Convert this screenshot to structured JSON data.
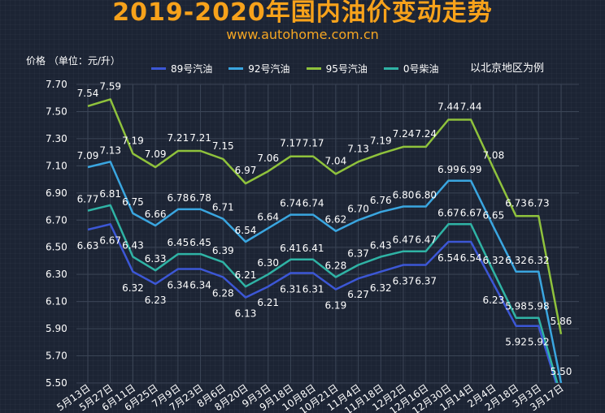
{
  "header": {
    "title": "2019-2020年国内油价变动走势",
    "source": "www.autohome.com.cn",
    "unit": "价格 （单位：元/升）",
    "note": "以北京地区为例"
  },
  "colors": {
    "s89": "#3c57d6",
    "s92": "#3aa6e0",
    "s95": "#8fc23c",
    "s0": "#2fb3a5",
    "title": "#f7a21b",
    "grid": "#3b4556"
  },
  "chart_data": {
    "type": "line",
    "title": "2019-2020年国内油价变动走势",
    "ylabel": "价格 （单位：元/升）",
    "ylim": [
      5.5,
      7.7
    ],
    "yticks": [
      "7.70",
      "7.50",
      "7.30",
      "7.10",
      "6.90",
      "6.70",
      "6.50",
      "6.30",
      "6.10",
      "5.90",
      "5.70",
      "5.50"
    ],
    "grid": true,
    "legend_position": "top",
    "x": [
      "5月13日",
      "5月27日",
      "6月11日",
      "6月25日",
      "7月9日",
      "7月23日",
      "8月6日",
      "8月20日",
      "9月3日",
      "9月18日",
      "10月8日",
      "10月21日",
      "11月4日",
      "11月18日",
      "12月2日",
      "12月16日",
      "12月30日",
      "1月14日",
      "2月4日",
      "2月18日",
      "3月3日",
      "3月17日"
    ],
    "series": [
      {
        "name": "89号汽油",
        "color": "#3c57d6",
        "values": [
          6.63,
          6.67,
          6.32,
          6.23,
          6.34,
          6.34,
          6.28,
          6.13,
          6.21,
          6.31,
          6.31,
          6.19,
          6.27,
          6.32,
          6.37,
          6.37,
          6.54,
          6.54,
          6.23,
          5.92,
          5.92,
          5.38
        ],
        "labels": [
          "6.63",
          "6.67",
          "6.32",
          "6.23",
          "6.34",
          "6.34",
          "6.28",
          "6.13",
          "6.21",
          "6.31",
          "6.31",
          "6.19",
          "6.27",
          "6.32",
          "6.37",
          "6.37",
          "6.54",
          "6.54",
          "6.23",
          "5.92",
          "5.92",
          ""
        ]
      },
      {
        "name": "92号汽油",
        "color": "#3aa6e0",
        "values": [
          7.09,
          7.13,
          6.75,
          6.66,
          6.78,
          6.78,
          6.71,
          6.54,
          6.64,
          6.74,
          6.74,
          6.62,
          6.7,
          6.76,
          6.8,
          6.8,
          6.99,
          6.99,
          6.65,
          6.32,
          6.32,
          5.5
        ],
        "labels": [
          "7.09",
          "7.13",
          "6.75",
          "6.66",
          "6.78",
          "6.78",
          "6.71",
          "6.54",
          "6.64",
          "6.74",
          "6.74",
          "6.62",
          "6.70",
          "6.76",
          "6.80",
          "6.80",
          "6.99",
          "6.99",
          "6.65",
          "6.32",
          "6.32",
          "5.50"
        ]
      },
      {
        "name": "95号汽油",
        "color": "#8fc23c",
        "values": [
          7.54,
          7.59,
          7.19,
          7.09,
          7.21,
          7.21,
          7.15,
          6.97,
          7.06,
          7.17,
          7.17,
          7.04,
          7.13,
          7.19,
          7.24,
          7.24,
          7.44,
          7.44,
          7.08,
          6.73,
          6.73,
          5.86
        ],
        "labels": [
          "7.54",
          "7.59",
          "7.19",
          "7.09",
          "7.21",
          "7.21",
          "7.15",
          "6.97",
          "7.06",
          "7.17",
          "7.17",
          "7.04",
          "7.13",
          "7.19",
          "7.24",
          "7.24",
          "7.44",
          "7.44",
          "7.08",
          "6.73",
          "6.73",
          "5.86"
        ]
      },
      {
        "name": "0号柴油",
        "color": "#2fb3a5",
        "values": [
          6.77,
          6.81,
          6.43,
          6.33,
          6.45,
          6.45,
          6.39,
          6.21,
          6.3,
          6.41,
          6.41,
          6.28,
          6.37,
          6.43,
          6.47,
          6.47,
          6.67,
          6.67,
          6.32,
          5.98,
          5.98,
          5.4
        ],
        "labels": [
          "6.77",
          "6.81",
          "6.43",
          "6.33",
          "6.45",
          "6.45",
          "6.39",
          "6.21",
          "6.30",
          "6.41",
          "6.41",
          "6.28",
          "6.37",
          "6.43",
          "6.47",
          "6.47",
          "6.67",
          "6.67",
          "6.32",
          "5.98",
          "5.98",
          ""
        ]
      }
    ]
  }
}
